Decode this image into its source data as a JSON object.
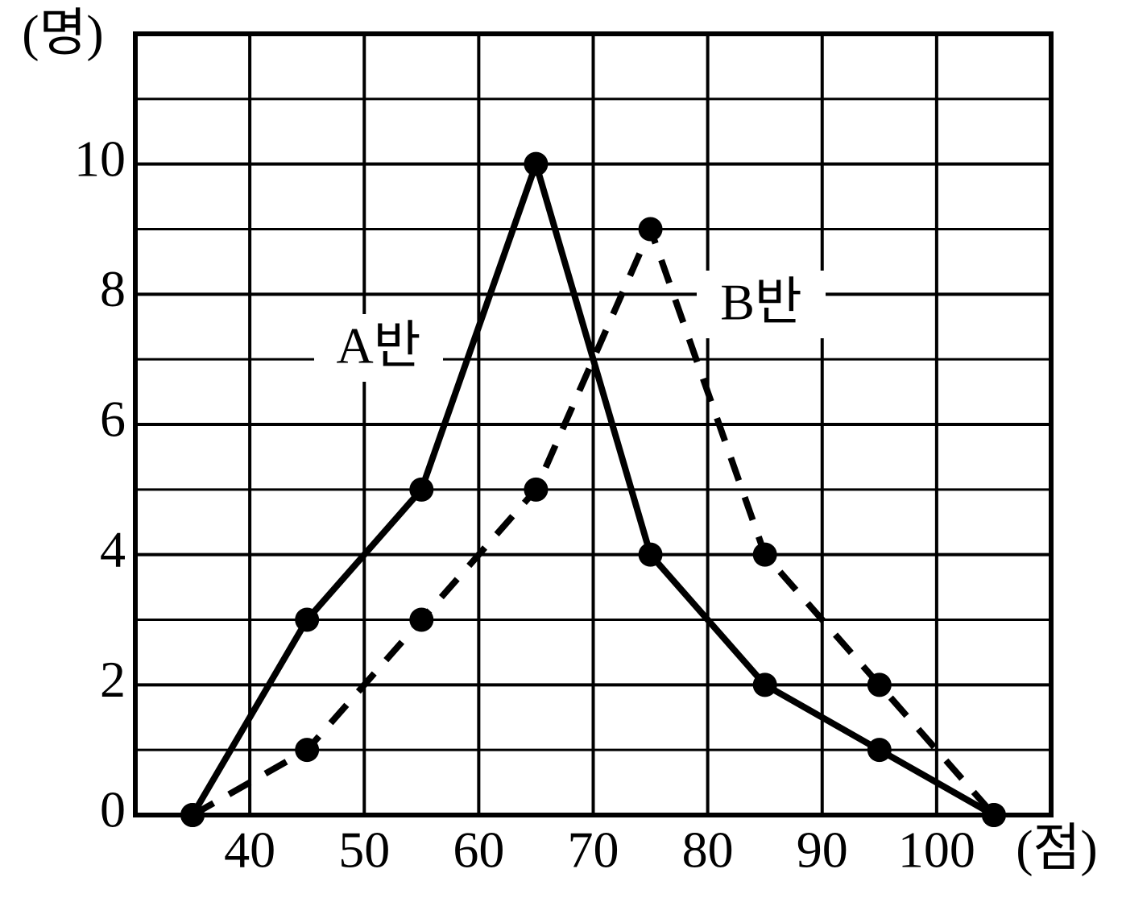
{
  "chart_data": {
    "type": "line",
    "y_label": "(명)",
    "x_label": "(점)",
    "x": [
      35,
      45,
      55,
      65,
      75,
      85,
      95,
      105
    ],
    "series": [
      {
        "name": "A반",
        "color": "#000000",
        "line_style": "solid",
        "values": [
          0,
          3,
          5,
          10,
          4,
          2,
          1,
          0
        ]
      },
      {
        "name": "B반",
        "color": "#000000",
        "line_style": "dashed",
        "values": [
          0,
          1,
          3,
          5,
          9,
          4,
          2,
          0
        ]
      }
    ],
    "xlim": [
      30,
      110
    ],
    "xticks": [
      40,
      50,
      60,
      70,
      80,
      90,
      100
    ],
    "ylim": [
      0,
      12
    ],
    "yticks": [
      0,
      2,
      4,
      6,
      8,
      10
    ],
    "grid": true
  }
}
